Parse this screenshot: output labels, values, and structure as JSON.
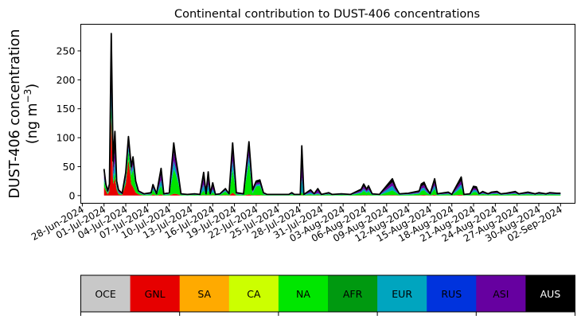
{
  "chart_data": {
    "type": "area",
    "stacked": true,
    "title": "Continental contribution to DUST-406 concentrations",
    "ylabel_line1": "DUST-406 concentration",
    "ylabel_line2": "(ng m",
    "ylabel_sup": "−3",
    "ylabel_close": ")",
    "xlim": [
      "2024-06-27T19:00",
      "2024-09-04T00:00"
    ],
    "ylim": [
      -13.3,
      296
    ],
    "yticks": [
      0,
      50,
      100,
      150,
      200,
      250
    ],
    "xticks": [
      "2024-06-28",
      "2024-07-01",
      "2024-07-04",
      "2024-07-07",
      "2024-07-10",
      "2024-07-13",
      "2024-07-16",
      "2024-07-19",
      "2024-07-22",
      "2024-07-25",
      "2024-07-28",
      "2024-07-31",
      "2024-08-03",
      "2024-08-06",
      "2024-08-09",
      "2024-08-12",
      "2024-08-15",
      "2024-08-18",
      "2024-08-21",
      "2024-08-24",
      "2024-08-27",
      "2024-08-30",
      "2024-09-02"
    ],
    "xtick_labels": [
      "28-Jun-2024",
      "01-Jul-2024",
      "04-Jul-2024",
      "07-Jul-2024",
      "10-Jul-2024",
      "13-Jul-2024",
      "16-Jul-2024",
      "19-Jul-2024",
      "22-Jul-2024",
      "25-Jul-2024",
      "28-Jul-2024",
      "31-Jul-2024",
      "03-Aug-2024",
      "06-Aug-2024",
      "09-Aug-2024",
      "12-Aug-2024",
      "15-Aug-2024",
      "18-Aug-2024",
      "21-Aug-2024",
      "24-Aug-2024",
      "27-Aug-2024",
      "30-Aug-2024",
      "02-Sep-2024"
    ],
    "grid": false,
    "outline_color": "#000000",
    "legend": {
      "placement": "bottom",
      "entries": [
        {
          "label": "OCE",
          "color": "#c8c8c8",
          "text_color": "#000000"
        },
        {
          "label": "GNL",
          "color": "#e60000",
          "text_color": "#000000"
        },
        {
          "label": "SA",
          "color": "#ffaa00",
          "text_color": "#000000"
        },
        {
          "label": "CA",
          "color": "#ccff00",
          "text_color": "#000000"
        },
        {
          "label": "NA",
          "color": "#00e600",
          "text_color": "#000000"
        },
        {
          "label": "AFR",
          "color": "#009910",
          "text_color": "#000000"
        },
        {
          "label": "EUR",
          "color": "#00a5bf",
          "text_color": "#000000"
        },
        {
          "label": "RUS",
          "color": "#0033dd",
          "text_color": "#000000"
        },
        {
          "label": "ASI",
          "color": "#6600a0",
          "text_color": "#000000"
        },
        {
          "label": "AUS",
          "color": "#000000",
          "text_color": "#ffffff"
        }
      ]
    },
    "series_columns": [
      "GNL",
      "NA",
      "EUR",
      "ASI",
      "AUS"
    ],
    "series_colors": [
      "#e60000",
      "#00e600",
      "#00a5bf",
      "#6600a0",
      "#000000"
    ],
    "rows": [
      [
        "2024-07-01T00:00",
        15,
        10,
        5,
        6,
        10
      ],
      [
        "2024-07-01T06:00",
        8,
        5,
        2,
        2,
        3
      ],
      [
        "2024-07-01T12:00",
        2,
        2,
        1,
        1,
        2
      ],
      [
        "2024-07-01T18:00",
        8,
        2,
        2,
        2,
        6
      ],
      [
        "2024-07-02T00:00",
        135,
        20,
        30,
        40,
        55
      ],
      [
        "2024-07-02T06:00",
        20,
        5,
        10,
        10,
        15
      ],
      [
        "2024-07-02T12:00",
        30,
        10,
        20,
        20,
        31
      ],
      [
        "2024-07-02T18:00",
        10,
        3,
        4,
        4,
        4
      ],
      [
        "2024-07-03T00:00",
        2,
        2,
        2,
        2,
        2
      ],
      [
        "2024-07-03T12:00",
        1,
        1,
        1,
        0.5,
        0.5
      ],
      [
        "2024-07-04T00:00",
        20,
        5,
        5,
        5,
        5
      ],
      [
        "2024-07-04T09:00",
        62,
        15,
        8,
        7,
        10
      ],
      [
        "2024-07-04T18:00",
        20,
        15,
        5,
        5,
        5
      ],
      [
        "2024-07-05T00:00",
        15,
        30,
        8,
        7,
        7
      ],
      [
        "2024-07-05T09:00",
        5,
        12,
        3,
        2,
        3
      ],
      [
        "2024-07-05T18:00",
        2,
        3,
        1,
        1,
        1
      ],
      [
        "2024-07-06T12:00",
        0.2,
        1,
        0.6,
        0.6,
        0.6
      ],
      [
        "2024-07-07T12:00",
        0.3,
        1.7,
        1,
        1,
        1
      ],
      [
        "2024-07-07T18:00",
        2,
        8,
        3,
        3,
        3
      ],
      [
        "2024-07-08T06:00",
        0.2,
        1,
        0.6,
        0.6,
        0.6
      ],
      [
        "2024-07-08T21:00",
        2,
        15,
        10,
        10,
        10
      ],
      [
        "2024-07-09T06:00",
        0.2,
        1,
        0.6,
        0.6,
        0.6
      ],
      [
        "2024-07-10T00:00",
        0.3,
        1.7,
        1,
        1,
        1
      ],
      [
        "2024-07-10T15:00",
        3,
        42,
        15,
        15,
        16
      ],
      [
        "2024-07-10T21:00",
        3,
        35,
        10,
        10,
        9
      ],
      [
        "2024-07-11T06:00",
        2,
        20,
        5,
        5,
        5
      ],
      [
        "2024-07-11T15:00",
        0.2,
        1,
        0.6,
        0.6,
        0.6
      ],
      [
        "2024-07-12T12:00",
        0.1,
        0.7,
        0.4,
        0.4,
        0.4
      ],
      [
        "2024-07-13T12:00",
        0.2,
        1,
        0.6,
        0.6,
        0.6
      ],
      [
        "2024-07-14T06:00",
        0.1,
        0.7,
        0.4,
        0.4,
        0.4
      ],
      [
        "2024-07-14T18:00",
        1,
        8,
        10,
        10,
        11
      ],
      [
        "2024-07-15T02:00",
        0.2,
        1,
        0.6,
        0.6,
        0.6
      ],
      [
        "2024-07-15T09:00",
        1,
        8,
        10,
        10,
        12
      ],
      [
        "2024-07-15T16:00",
        0.2,
        1,
        0.6,
        0.6,
        0.6
      ],
      [
        "2024-07-16T00:00",
        1,
        5,
        5,
        5,
        6
      ],
      [
        "2024-07-16T09:00",
        0.1,
        0.7,
        0.4,
        0.4,
        0.4
      ],
      [
        "2024-07-17T00:00",
        0.2,
        1,
        0.6,
        0.6,
        0.6
      ],
      [
        "2024-07-17T18:00",
        1,
        6,
        2,
        2,
        1
      ],
      [
        "2024-07-18T06:00",
        0.2,
        1,
        0.6,
        0.6,
        0.6
      ],
      [
        "2024-07-18T18:00",
        5,
        40,
        15,
        15,
        16
      ],
      [
        "2024-07-19T06:00",
        0.3,
        1.7,
        1,
        1,
        1
      ],
      [
        "2024-07-20T06:00",
        0.2,
        1,
        0.6,
        0.6,
        0.6
      ],
      [
        "2024-07-21T00:00",
        2,
        55,
        12,
        12,
        12
      ],
      [
        "2024-07-21T12:00",
        0.5,
        3.5,
        2,
        2,
        2
      ],
      [
        "2024-07-22T00:00",
        1,
        15,
        3,
        3,
        3
      ],
      [
        "2024-07-22T12:00",
        1,
        16,
        3,
        3,
        4
      ],
      [
        "2024-07-23T00:00",
        0.3,
        1.7,
        1,
        1,
        1
      ],
      [
        "2024-07-23T12:00",
        0.1,
        0.7,
        0.4,
        0.4,
        0.4
      ],
      [
        "2024-07-26T12:00",
        0.1,
        0.7,
        0.4,
        0.4,
        0.4
      ],
      [
        "2024-07-26T22:00",
        0.3,
        1.7,
        1,
        1,
        1
      ],
      [
        "2024-07-27T06:00",
        0.1,
        0.7,
        0.4,
        0.4,
        0.4
      ],
      [
        "2024-07-28T02:00",
        0.1,
        0.7,
        0.4,
        0.4,
        0.4
      ],
      [
        "2024-07-28T07:00",
        1,
        5,
        25,
        25,
        30
      ],
      [
        "2024-07-28T14:00",
        0.1,
        0.7,
        0.4,
        0.4,
        0.4
      ],
      [
        "2024-07-29T12:00",
        0.5,
        2,
        3,
        3,
        1.5
      ],
      [
        "2024-07-30T00:00",
        0.2,
        1,
        0.6,
        0.6,
        0.6
      ],
      [
        "2024-07-30T12:00",
        0.5,
        2,
        2,
        6,
        1.5
      ],
      [
        "2024-07-31T00:00",
        0.1,
        0.7,
        0.4,
        0.4,
        0.4
      ],
      [
        "2024-08-01T00:00",
        0.3,
        1.7,
        1,
        1,
        1
      ],
      [
        "2024-08-01T12:00",
        0.1,
        0.7,
        0.4,
        0.4,
        0.4
      ],
      [
        "2024-08-02T18:00",
        0.2,
        1,
        0.6,
        0.6,
        0.6
      ],
      [
        "2024-08-04T00:00",
        0.1,
        0.7,
        0.4,
        0.4,
        0.4
      ],
      [
        "2024-08-05T12:00",
        0.5,
        3.9,
        2.2,
        2.2,
        2.2
      ],
      [
        "2024-08-05T20:00",
        1,
        7,
        4,
        4,
        4
      ],
      [
        "2024-08-06T06:00",
        0.5,
        3.9,
        2.2,
        2.2,
        2.2
      ],
      [
        "2024-08-06T12:00",
        0.9,
        5.9,
        3.4,
        3.4,
        3.4
      ],
      [
        "2024-08-07T00:00",
        0.2,
        1,
        0.6,
        0.6,
        0.6
      ],
      [
        "2024-08-08T00:00",
        0.1,
        0.7,
        0.4,
        0.4,
        0.4
      ],
      [
        "2024-08-09T19:00",
        1,
        8,
        8,
        6,
        6
      ],
      [
        "2024-08-10T06:00",
        0.7,
        4.9,
        2.8,
        2.8,
        2.8
      ],
      [
        "2024-08-10T18:00",
        0.2,
        1,
        0.6,
        0.6,
        0.6
      ],
      [
        "2024-08-12T00:00",
        0.2,
        1.4,
        0.8,
        0.8,
        0.8
      ],
      [
        "2024-08-13T12:00",
        0.4,
        2.8,
        1.6,
        1.6,
        1.6
      ],
      [
        "2024-08-13T19:00",
        1,
        7,
        4,
        4,
        4
      ],
      [
        "2024-08-14T04:00",
        1.2,
        8,
        4.6,
        4.6,
        4.6
      ],
      [
        "2024-08-14T12:00",
        0.7,
        4.5,
        2.6,
        2.6,
        2.6
      ],
      [
        "2024-08-15T00:00",
        0.2,
        1,
        0.6,
        0.6,
        0.6
      ],
      [
        "2024-08-15T15:00",
        1.5,
        10,
        5.8,
        5.8,
        5.9
      ],
      [
        "2024-08-16T00:00",
        0.2,
        1,
        0.6,
        0.6,
        0.6
      ],
      [
        "2024-08-17T12:00",
        0.3,
        2.1,
        1.2,
        1.2,
        1.2
      ],
      [
        "2024-08-18T00:00",
        0.1,
        0.7,
        0.4,
        0.4,
        0.4
      ],
      [
        "2024-08-19T07:00",
        1.6,
        11.2,
        6.4,
        6.4,
        6.4
      ],
      [
        "2024-08-19T16:00",
        0.1,
        0.7,
        0.4,
        0.4,
        0.4
      ],
      [
        "2024-08-20T12:00",
        0.2,
        1,
        0.6,
        0.6,
        0.6
      ],
      [
        "2024-08-21T00:00",
        0.8,
        5.6,
        3.2,
        3.2,
        3.2
      ],
      [
        "2024-08-21T09:00",
        0.8,
        5.2,
        3,
        3,
        3
      ],
      [
        "2024-08-21T18:00",
        0.2,
        1,
        0.6,
        0.6,
        0.6
      ],
      [
        "2024-08-22T06:00",
        0.4,
        2.4,
        1.4,
        1.4,
        1.4
      ],
      [
        "2024-08-23T00:00",
        0.2,
        1,
        0.6,
        0.6,
        0.6
      ],
      [
        "2024-08-23T12:00",
        0.3,
        2.1,
        1.2,
        1.2,
        1.2
      ],
      [
        "2024-08-24T06:00",
        0.4,
        2.4,
        1.4,
        1.4,
        1.4
      ],
      [
        "2024-08-24T18:00",
        0.2,
        1,
        0.6,
        0.6,
        0.6
      ],
      [
        "2024-08-25T12:00",
        0.2,
        1.4,
        0.8,
        0.8,
        0.8
      ],
      [
        "2024-08-26T18:00",
        0.4,
        2.4,
        1.4,
        1.4,
        1.4
      ],
      [
        "2024-08-27T06:00",
        0.2,
        1,
        0.6,
        0.6,
        0.6
      ],
      [
        "2024-08-28T12:00",
        0.3,
        2.1,
        1.2,
        1.2,
        1.2
      ],
      [
        "2024-08-29T12:00",
        0.2,
        1,
        0.6,
        0.6,
        0.6
      ],
      [
        "2024-08-30T00:00",
        0.3,
        1.7,
        1,
        1,
        1
      ],
      [
        "2024-08-31T00:00",
        0.2,
        1,
        0.6,
        0.6,
        0.6
      ],
      [
        "2024-08-31T12:00",
        0.3,
        1.7,
        1,
        1,
        1
      ],
      [
        "2024-09-01T12:00",
        0.2,
        1.4,
        0.8,
        0.8,
        0.8
      ],
      [
        "2024-09-02T00:00",
        0.2,
        1.4,
        0.8,
        0.8,
        0.8
      ]
    ]
  }
}
